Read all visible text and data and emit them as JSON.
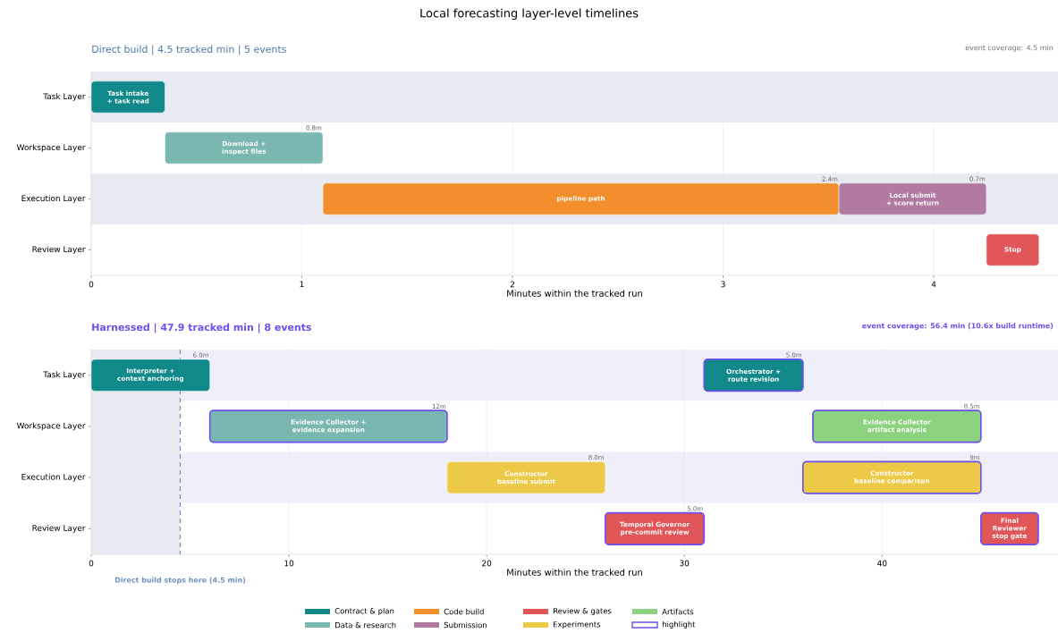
{
  "chart_data": [
    {
      "type": "bar",
      "orientation": "horizontal",
      "title": "Local forecasting layer-level timelines",
      "subtitle": "Direct build | 4.5 tracked min | 5 events",
      "xlabel": "Minutes within the tracked run",
      "categories": [
        "Task Layer",
        "Workspace Layer",
        "Execution Layer",
        "Review Layer"
      ],
      "xlim": [
        0,
        4.59
      ],
      "xticks": [
        0,
        1,
        2,
        3,
        4
      ],
      "grid": "x",
      "legend": "bottom",
      "series": [
        {
          "name": "Contract & plan",
          "color": "#11898a",
          "base": [
            0,
            null,
            null,
            null
          ],
          "values": [
            0.35,
            null,
            null,
            null
          ]
        },
        {
          "name": "Data & research",
          "color": "#79b7b0",
          "base": [
            null,
            0.35,
            null,
            null
          ],
          "values": [
            null,
            0.75,
            null,
            null
          ],
          "value_labels": [
            null,
            "0.8m",
            null,
            null
          ]
        },
        {
          "name": "Code build",
          "color": "#f28e2b",
          "base": [
            null,
            null,
            1.1,
            null
          ],
          "values": [
            null,
            null,
            2.45,
            null
          ],
          "value_labels": [
            null,
            null,
            "2.4m",
            null
          ]
        },
        {
          "name": "Submission",
          "color": "#b07aa1",
          "base": [
            null,
            null,
            3.55,
            null
          ],
          "values": [
            null,
            null,
            0.7,
            null
          ],
          "value_labels": [
            null,
            null,
            "0.7m",
            null
          ]
        },
        {
          "name": "Review & gates",
          "color": "#e15759",
          "base": [
            null,
            null,
            null,
            4.25
          ],
          "values": [
            null,
            null,
            null,
            0.25
          ]
        }
      ],
      "annotations": [
        "Task intake + task read",
        "Download + inspect files",
        "pipeline path",
        "Local submit + score return",
        "Stop",
        "event coverage: 4.5 min"
      ]
    },
    {
      "type": "bar",
      "orientation": "horizontal",
      "title": "Harnessed | 47.9 tracked min | 8 events",
      "xlabel": "Minutes within the tracked run",
      "categories": [
        "Task Layer",
        "Workspace Layer",
        "Execution Layer",
        "Review Layer"
      ],
      "xlim": [
        0,
        48.9
      ],
      "xticks": [
        0,
        10,
        20,
        30,
        40
      ],
      "grid": "x",
      "legend": "bottom",
      "ref_lines": [
        {
          "axis": "x",
          "value": 4.5,
          "label": "Direct build stops here (4.5 min)",
          "color": "#6f8fbf",
          "line_style": "dashed"
        }
      ],
      "bands": [
        {
          "axis": "x",
          "from": 0,
          "to": 4.5,
          "color": "#e7eaf0"
        }
      ],
      "series": [
        {
          "name": "Contract & plan",
          "color": "#11898a",
          "base": [
            0,
            null,
            null,
            null
          ],
          "values": [
            6.0,
            null,
            null,
            null
          ],
          "value_labels": [
            "6.0m",
            null,
            null,
            null
          ]
        },
        {
          "name": "Data & research",
          "color": "#79b7b0",
          "line_style": "solid",
          "base": [
            null,
            6,
            null,
            null
          ],
          "values": [
            null,
            12,
            null,
            null
          ],
          "value_labels": [
            null,
            "12m",
            null,
            null
          ]
        },
        {
          "name": "Experiments",
          "color": "#edc948",
          "base": [
            null,
            null,
            18,
            null
          ],
          "values": [
            null,
            null,
            8.0,
            null
          ],
          "value_labels": [
            null,
            null,
            "8.0m",
            null
          ]
        },
        {
          "name": "Review & gates",
          "color": "#e15759",
          "line_style": "solid",
          "base": [
            null,
            null,
            null,
            26
          ],
          "values": [
            null,
            null,
            null,
            5.0
          ],
          "value_labels": [
            null,
            null,
            null,
            "5.0m"
          ]
        },
        {
          "color": "#11898a",
          "line_style": "solid",
          "base": [
            31,
            null,
            null,
            null
          ],
          "values": [
            5.0,
            null,
            null,
            null
          ],
          "value_labels": [
            "5.0m",
            null,
            null,
            null
          ]
        },
        {
          "name": "Artifacts",
          "color": "#8cd17d",
          "line_style": "solid",
          "base": [
            null,
            36.5,
            null,
            null
          ],
          "values": [
            null,
            8.5,
            null,
            null
          ],
          "value_labels": [
            null,
            "8.5m",
            null,
            null
          ]
        },
        {
          "color": "#edc948",
          "line_style": "solid",
          "base": [
            null,
            null,
            36,
            null
          ],
          "values": [
            null,
            null,
            9,
            null
          ],
          "value_labels": [
            null,
            null,
            "9m",
            null
          ]
        },
        {
          "color": "#e15759",
          "line_style": "solid",
          "base": [
            null,
            null,
            null,
            45
          ],
          "values": [
            null,
            null,
            null,
            2.9
          ]
        }
      ],
      "annotations": [
        "Interpreter + context anchoring",
        "Evidence Collector + evidence expansion",
        "Constructor baseline submit",
        "Temporal Governor pre-commit review",
        "Orchestrator + route revision",
        "Evidence Collector artifact analysis",
        "Constructor baseline comparison",
        "Final Reviewer stop gate",
        "event coverage: 56.4 min (10.6x build runtime)",
        "highlight"
      ]
    }
  ]
}
